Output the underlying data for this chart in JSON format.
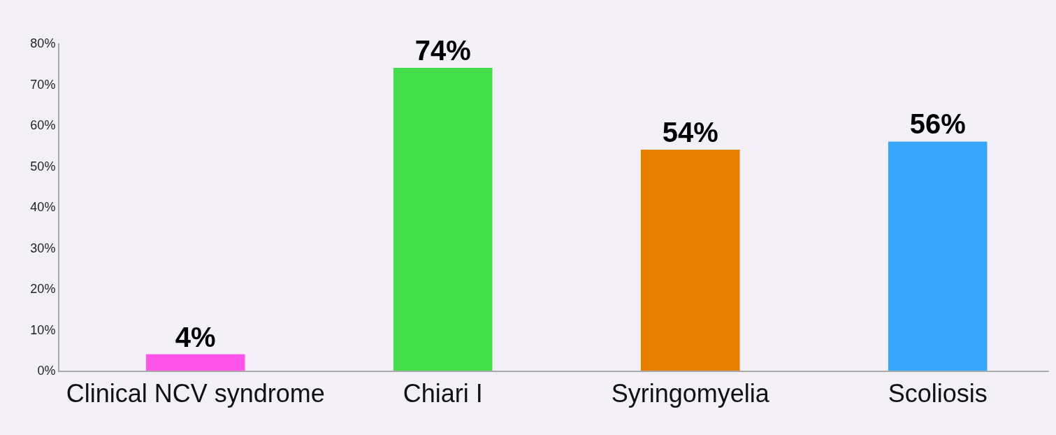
{
  "chart_data": {
    "type": "bar",
    "categories": [
      "Clinical NCV syndrome",
      "Chiari I",
      "Syringomyelia",
      "Scoliosis"
    ],
    "values": [
      4,
      74,
      54,
      56
    ],
    "colors": [
      "#ff55e8",
      "#44dd4c",
      "#e87e00",
      "#38a6fb"
    ],
    "value_labels": [
      "4%",
      "74%",
      "54%",
      "56%"
    ],
    "ylim": [
      0,
      80
    ],
    "yticks": [
      {
        "value": 0,
        "label": "0%"
      },
      {
        "value": 10,
        "label": "10%"
      },
      {
        "value": 20,
        "label": "20%"
      },
      {
        "value": 30,
        "label": "30%"
      },
      {
        "value": 40,
        "label": "40%"
      },
      {
        "value": 50,
        "label": "50%"
      },
      {
        "value": 60,
        "label": "60%"
      },
      {
        "value": 70,
        "label": "70%"
      },
      {
        "value": 80,
        "label": "80%"
      }
    ],
    "grid": false
  }
}
